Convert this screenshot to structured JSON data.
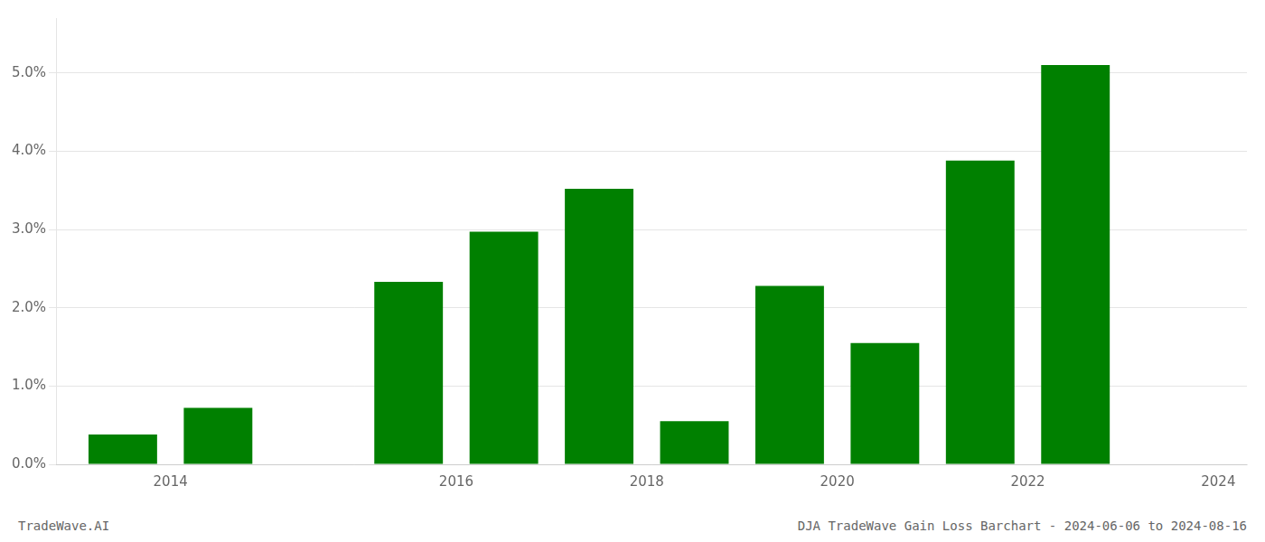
{
  "chart_data": {
    "type": "bar",
    "x": [
      2013,
      2014,
      2016,
      2017,
      2018,
      2019,
      2020,
      2021,
      2022,
      2023
    ],
    "values": [
      0.0038,
      0.0072,
      0.0233,
      0.0297,
      0.0352,
      0.0055,
      0.0228,
      0.0155,
      0.0388,
      0.051
    ],
    "color": "#008000",
    "xlim": [
      2012.3,
      2024.8
    ],
    "xticks": [
      {
        "value": 2013.5,
        "label": "2014"
      },
      {
        "value": 2016.5,
        "label": "2016"
      },
      {
        "value": 2018.5,
        "label": "2018"
      },
      {
        "value": 2020.5,
        "label": "2020"
      },
      {
        "value": 2022.5,
        "label": "2022"
      },
      {
        "value": 2024.5,
        "label": "2024"
      }
    ],
    "ylim": [
      0,
      0.057
    ],
    "yticks": [
      {
        "value": 0,
        "label": "0.0%"
      },
      {
        "value": 0.01,
        "label": "1.0%"
      },
      {
        "value": 0.02,
        "label": "2.0%"
      },
      {
        "value": 0.03,
        "label": "3.0%"
      },
      {
        "value": 0.04,
        "label": "4.0%"
      },
      {
        "value": 0.05,
        "label": "5.0%"
      }
    ],
    "grid": true,
    "annotations": [
      "TradeWave.AI",
      "DJA TradeWave Gain Loss Barchart - 2024-06-06 to 2024-08-16"
    ]
  }
}
